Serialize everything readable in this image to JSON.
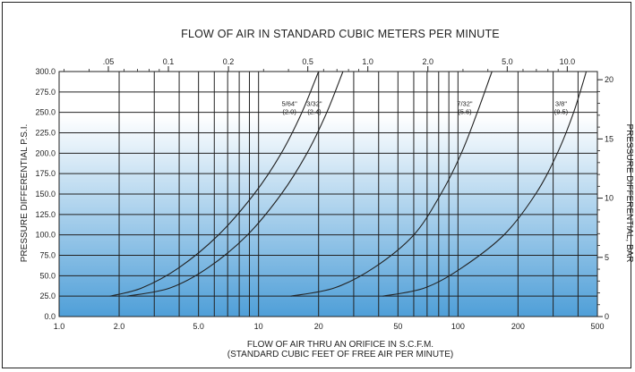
{
  "chart_data": {
    "type": "line",
    "title": "FLOW OF AIR IN STANDARD CUBIC METERS PER MINUTE",
    "xlabel": "FLOW OF AIR THRU AN ORIFICE IN S.C.F.M.",
    "xlabel_sub": "(STANDARD CUBIC FEET OF FREE AIR PER MINUTE)",
    "ylabel": "PRESSURE DIFFERENTIAL P.S.I.",
    "ylabel_right": "PRESSURE DIFFERENTIAL, BAR",
    "x_scale": "log",
    "xlim": [
      1,
      500
    ],
    "ylim": [
      0,
      300
    ],
    "ylim_right": [
      0,
      20.69
    ],
    "x_ticks": [
      {
        "value": 1,
        "label": "1.0"
      },
      {
        "value": 2,
        "label": "2.0"
      },
      {
        "value": 5,
        "label": "5.0"
      },
      {
        "value": 10,
        "label": "10"
      },
      {
        "value": 20,
        "label": "20"
      },
      {
        "value": 50,
        "label": "50"
      },
      {
        "value": 100,
        "label": "100"
      },
      {
        "value": 200,
        "label": "200"
      },
      {
        "value": 500,
        "label": "500"
      }
    ],
    "x_grid": [
      1,
      2,
      3,
      4,
      5,
      6,
      7,
      8,
      9,
      10,
      20,
      30,
      40,
      50,
      60,
      70,
      80,
      90,
      100,
      200,
      300,
      400,
      500
    ],
    "y_ticks": [
      {
        "value": 0,
        "label": "0.0"
      },
      {
        "value": 25,
        "label": "25.0"
      },
      {
        "value": 50,
        "label": "50.0"
      },
      {
        "value": 75,
        "label": "75.0"
      },
      {
        "value": 100,
        "label": "100.0"
      },
      {
        "value": 125,
        "label": "125.0"
      },
      {
        "value": 150,
        "label": "150.0"
      },
      {
        "value": 175,
        "label": "175.0"
      },
      {
        "value": 200,
        "label": "200.0"
      },
      {
        "value": 225,
        "label": "225.0"
      },
      {
        "value": 250,
        "label": "250.0"
      },
      {
        "value": 275,
        "label": "275.0"
      },
      {
        "value": 300,
        "label": "300.0"
      }
    ],
    "top_ticks": [
      {
        "value": 0.05,
        "label": ".05"
      },
      {
        "value": 0.1,
        "label": "0.1"
      },
      {
        "value": 0.2,
        "label": "0.2"
      },
      {
        "value": 0.5,
        "label": "0.5"
      },
      {
        "value": 1.0,
        "label": "1.0"
      },
      {
        "value": 2.0,
        "label": "2.0"
      },
      {
        "value": 5.0,
        "label": "5.0"
      },
      {
        "value": 10.0,
        "label": "10.0"
      }
    ],
    "top_minor_ticks": [
      0.03,
      0.04,
      0.06,
      0.07,
      0.08,
      0.09,
      0.3,
      0.4,
      0.6,
      0.7,
      0.8,
      0.9,
      3,
      4,
      6,
      7,
      8,
      9
    ],
    "right_ticks": [
      {
        "value": 0,
        "label": "0"
      },
      {
        "value": 5,
        "label": "5"
      },
      {
        "value": 10,
        "label": "10"
      },
      {
        "value": 15,
        "label": "15"
      },
      {
        "value": 20,
        "label": "20"
      }
    ],
    "right_minor_ticks": [
      1,
      2,
      3,
      4,
      6,
      7,
      8,
      9,
      11,
      12,
      13,
      14,
      16,
      17,
      18,
      19
    ],
    "series": [
      {
        "name": "5/64\"",
        "name_metric": "(2.0)",
        "points": [
          [
            1.8,
            25
          ],
          [
            2.6,
            35
          ],
          [
            4.0,
            60
          ],
          [
            6.3,
            100
          ],
          [
            9.5,
            150
          ],
          [
            13.0,
            200
          ],
          [
            16.5,
            250
          ],
          [
            20.0,
            300
          ]
        ]
      },
      {
        "name": "3/32\"",
        "name_metric": "(2.4)",
        "points": [
          [
            2.2,
            25
          ],
          [
            3.6,
            35
          ],
          [
            5.6,
            60
          ],
          [
            8.8,
            100
          ],
          [
            13.0,
            150
          ],
          [
            17.5,
            200
          ],
          [
            22.0,
            250
          ],
          [
            26.5,
            300
          ]
        ]
      },
      {
        "name": "7/32\"",
        "name_metric": "(5.6)",
        "points": [
          [
            14.5,
            25
          ],
          [
            24.0,
            35
          ],
          [
            38.0,
            60
          ],
          [
            60.0,
            100
          ],
          [
            82.0,
            150
          ],
          [
            104.0,
            200
          ],
          [
            125.0,
            250
          ],
          [
            148.0,
            300
          ]
        ]
      },
      {
        "name": "3/8\"",
        "name_metric": "(9.5)",
        "points": [
          [
            42.0,
            25
          ],
          [
            68.0,
            35
          ],
          [
            105.0,
            60
          ],
          [
            170.0,
            100
          ],
          [
            245.0,
            150
          ],
          [
            315.0,
            200
          ],
          [
            380.0,
            250
          ],
          [
            440.0,
            300
          ]
        ]
      }
    ],
    "grid": true,
    "legend": "none",
    "gradient_top": "#ffffff",
    "gradient_bottom": "#4f9fd8",
    "line_color": "#222222"
  }
}
